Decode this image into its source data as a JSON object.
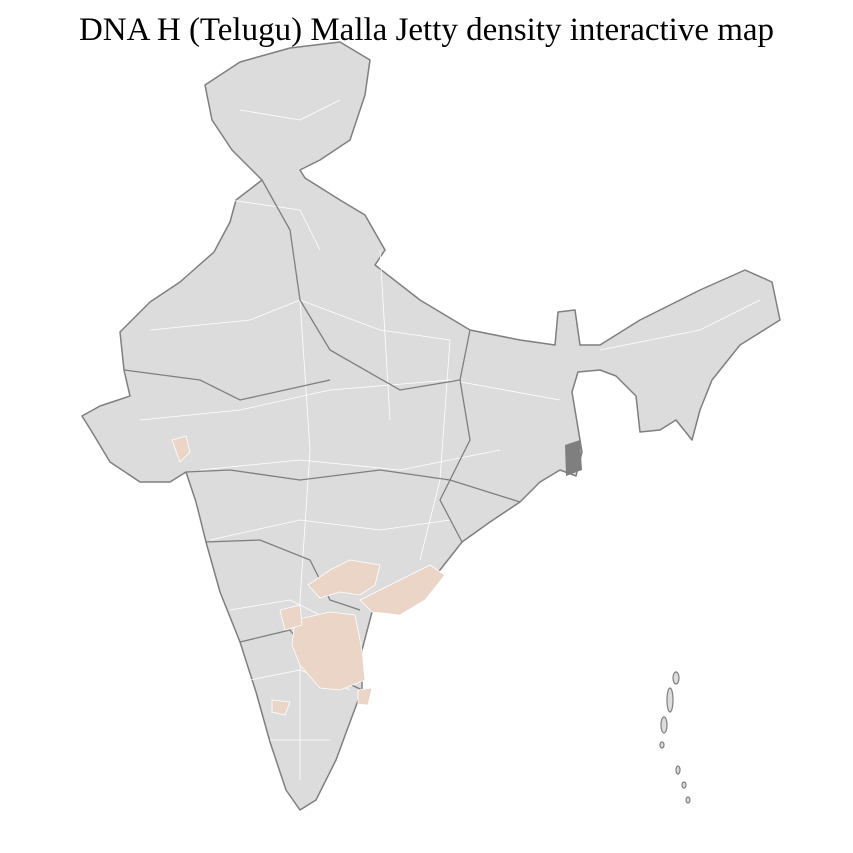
{
  "title": "DNA H (Telugu) Malla Jetty density interactive map",
  "map": {
    "region": "India districts",
    "colors": {
      "base": "#dcdcdc",
      "highlight": "#ead5c7",
      "state_border": "#7f7f7f",
      "district_border": "#ffffff"
    },
    "highlighted_areas": [
      "Telangana",
      "Andhra Pradesh coastal",
      "Rayalaseema",
      "Gujarat district",
      "Karnataka district",
      "Tamil Nadu district"
    ]
  }
}
